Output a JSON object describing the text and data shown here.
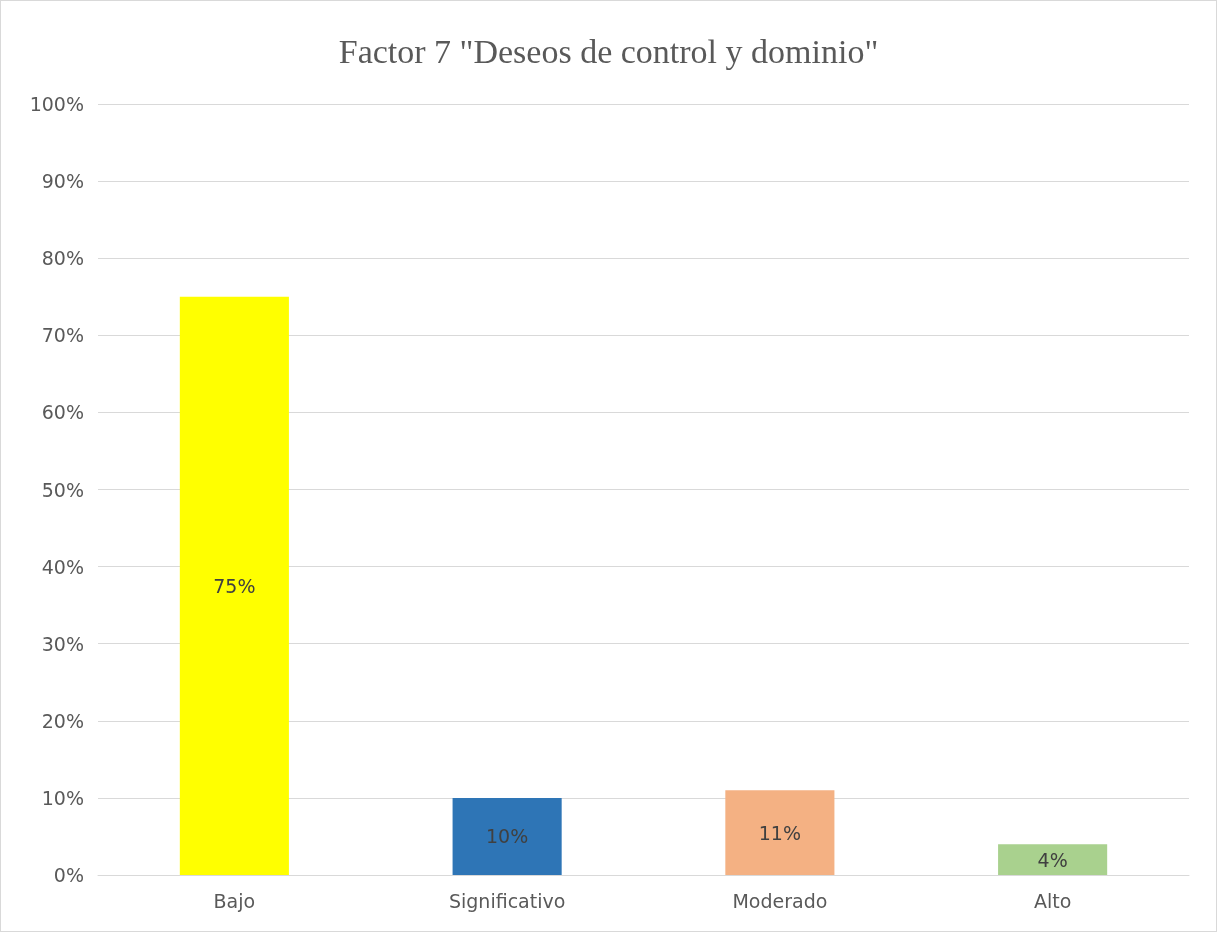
{
  "chart_data": {
    "type": "bar",
    "title": "Factor 7 \"Deseos de control y dominio\"",
    "categories": [
      "Bajo",
      "Significativo",
      "Moderado",
      "Alto"
    ],
    "values": [
      75,
      10,
      11,
      4
    ],
    "colors": [
      "#ffff00",
      "#2e75b6",
      "#f4b183",
      "#a9d18e"
    ],
    "value_labels": [
      "75%",
      "10%",
      "11%",
      "4%"
    ],
    "ylim": [
      0,
      100
    ],
    "yticks": [
      {
        "value": 0,
        "label": "0%"
      },
      {
        "value": 10,
        "label": "10%"
      },
      {
        "value": 20,
        "label": "20%"
      },
      {
        "value": 30,
        "label": "30%"
      },
      {
        "value": 40,
        "label": "40%"
      },
      {
        "value": 50,
        "label": "50%"
      },
      {
        "value": 60,
        "label": "60%"
      },
      {
        "value": 70,
        "label": "70%"
      },
      {
        "value": 80,
        "label": "80%"
      },
      {
        "value": 90,
        "label": "90%"
      },
      {
        "value": 100,
        "label": "100%"
      }
    ],
    "grid": "y"
  }
}
